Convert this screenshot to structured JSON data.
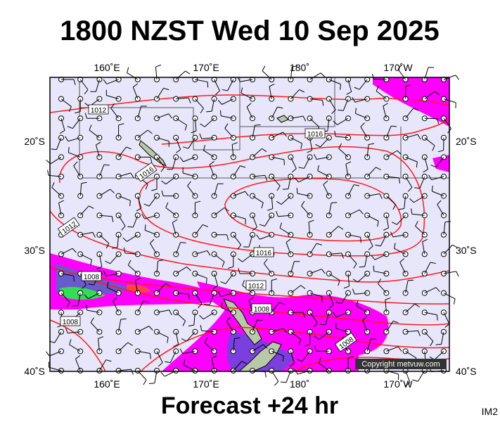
{
  "title": "1800 NZST Wed 10 Sep 2025",
  "map": {
    "top_labels": [
      "160˚E",
      "170˚E",
      "180˚",
      "170˚W"
    ],
    "bottom_labels": [
      "160˚E",
      "170˚E",
      "180˚",
      "170˚W"
    ],
    "left_labels": [
      "20˚S",
      "30˚S",
      "40˚S"
    ],
    "right_labels": [
      "20˚S",
      "30˚S",
      "40˚S"
    ],
    "isobar_labels": [
      "1012",
      "1016",
      "1016",
      "1012",
      "1016",
      "1008",
      "1012",
      "1008",
      "1008",
      "1008"
    ],
    "copyright": "Copyright metvuw.com"
  },
  "footer": "Forecast +24 hr",
  "code": "IM2"
}
